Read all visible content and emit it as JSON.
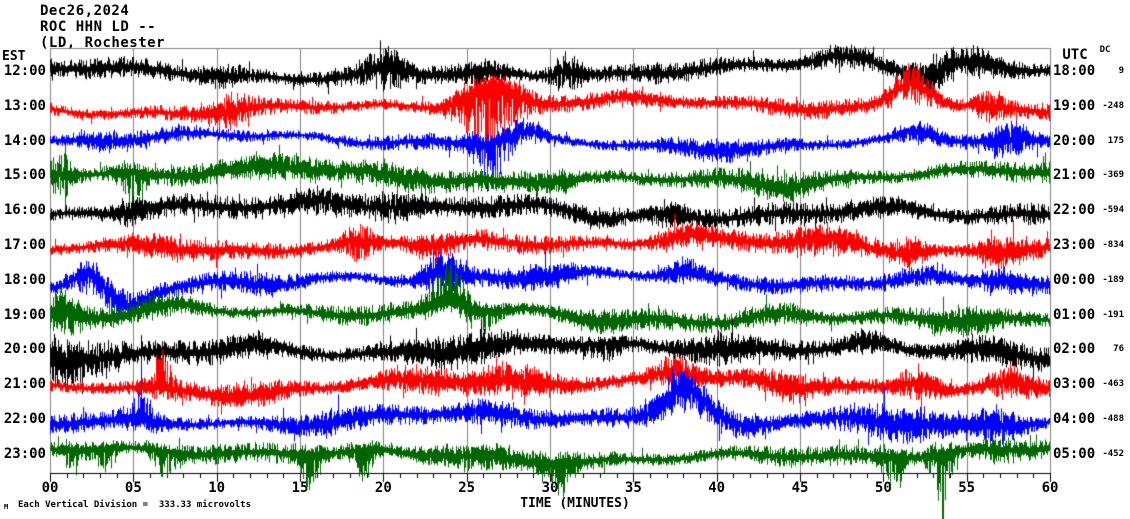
{
  "header": {
    "date": "Dec26,2024",
    "station": "ROC HHN LD --",
    "location": "(LD, Rochester"
  },
  "axes": {
    "left_header": "EST",
    "right_header": "UTC",
    "dc_header": "DC",
    "x_title": "TIME (MINUTES)",
    "footnote": "Each Vertical Division =  333.33 microvolts",
    "watermark": "M",
    "x_tick_labels": [
      "00",
      "05",
      "10",
      "15",
      "20",
      "25",
      "30",
      "35",
      "40",
      "45",
      "50",
      "55",
      "60"
    ]
  },
  "colors": {
    "black": "#000000",
    "red": "#ff0000",
    "blue": "#0000ff",
    "green": "#006600",
    "grid": "#808080",
    "axis": "#000000"
  },
  "chart_data": {
    "type": "line",
    "title": "ROC HHN LD -- helicorder, Dec26,2024",
    "xlabel": "TIME (MINUTES)",
    "x_range_minutes": [
      0,
      60
    ],
    "minor_tick_minutes": 1,
    "major_tick_minutes": 5,
    "microvolts_per_division": 333.33,
    "seed": 20241226,
    "rows": [
      {
        "est": "12:00",
        "utc": "18:00",
        "dc": "9",
        "color": "black",
        "amp": 11,
        "events": [
          {
            "m": 10.5,
            "w": 1.2,
            "a": 8
          },
          {
            "m": 20,
            "w": 0.9,
            "a": 16,
            "s": -6
          },
          {
            "m": 26,
            "w": 1,
            "a": 10
          },
          {
            "m": 31,
            "w": 0.7,
            "a": 18,
            "s": -6
          },
          {
            "m": 47.5,
            "w": 1.8,
            "a": 8,
            "s": -10
          },
          {
            "m": 52.5,
            "w": 1,
            "a": 6,
            "s": 6
          },
          {
            "m": 55,
            "w": 1.5,
            "a": 8,
            "s": -8
          }
        ]
      },
      {
        "est": "13:00",
        "utc": "19:00",
        "dc": "-248",
        "color": "red",
        "amp": 10,
        "events": [
          {
            "m": 11,
            "w": 0.8,
            "a": 12
          },
          {
            "m": 26.3,
            "w": 1.3,
            "a": 40,
            "d": 1,
            "s": -20
          },
          {
            "m": 35,
            "w": 1.5,
            "a": 6
          },
          {
            "m": 51.7,
            "w": 1.1,
            "a": 18,
            "s": -26
          },
          {
            "m": 56.5,
            "w": 0.8,
            "a": 14
          }
        ]
      },
      {
        "est": "14:00",
        "utc": "20:00",
        "dc": "175",
        "color": "blue",
        "amp": 9,
        "events": [
          {
            "m": 3,
            "w": 1,
            "a": 6
          },
          {
            "m": 26.5,
            "w": 0.8,
            "a": 30,
            "d": 1
          },
          {
            "m": 28.5,
            "w": 1,
            "a": 8,
            "s": -8
          },
          {
            "m": 40,
            "w": 2,
            "a": 5
          },
          {
            "m": 52,
            "w": 1,
            "a": 8,
            "s": -6
          },
          {
            "m": 57.5,
            "w": 0.8,
            "a": 14
          }
        ]
      },
      {
        "est": "15:00",
        "utc": "21:00",
        "dc": "-369",
        "color": "green",
        "amp": 12,
        "events": [
          {
            "m": 0.6,
            "w": 0.6,
            "a": 22
          },
          {
            "m": 5,
            "w": 0.6,
            "a": 18,
            "d": 1
          },
          {
            "m": 14,
            "w": 2,
            "a": 8,
            "s": -5
          },
          {
            "m": 20,
            "w": 2.5,
            "a": 8
          },
          {
            "m": 30,
            "w": 1,
            "a": 8
          },
          {
            "m": 44,
            "w": 1.5,
            "a": 6,
            "s": 4
          }
        ]
      },
      {
        "est": "16:00",
        "utc": "22:00",
        "dc": "-594",
        "color": "black",
        "amp": 12,
        "events": [
          {
            "m": 5,
            "w": 1,
            "a": 8
          },
          {
            "m": 17,
            "w": 2,
            "a": 10,
            "s": -8
          },
          {
            "m": 21,
            "w": 1,
            "a": 10
          },
          {
            "m": 33,
            "w": 1.5,
            "a": 6,
            "s": 6
          },
          {
            "m": 37,
            "w": 0.8,
            "a": 12
          },
          {
            "m": 50,
            "w": 2,
            "a": 6,
            "s": -5
          }
        ]
      },
      {
        "est": "17:00",
        "utc": "23:00",
        "dc": "-834",
        "color": "red",
        "amp": 11,
        "events": [
          {
            "m": 6,
            "w": 1.5,
            "a": 6,
            "s": -5
          },
          {
            "m": 18.5,
            "w": 0.8,
            "a": 16
          },
          {
            "m": 23,
            "w": 1,
            "a": 8,
            "s": 6
          },
          {
            "m": 38,
            "w": 1.5,
            "a": 8,
            "s": -6
          },
          {
            "m": 47,
            "w": 2,
            "a": 10,
            "s": -6
          },
          {
            "m": 51.5,
            "w": 0.8,
            "a": 12
          },
          {
            "m": 57,
            "w": 0.8,
            "a": 14
          }
        ]
      },
      {
        "est": "18:00",
        "utc": "00:00",
        "dc": "-189",
        "color": "blue",
        "amp": 10,
        "events": [
          {
            "m": 2.2,
            "w": 0.9,
            "a": 14,
            "s": -14
          },
          {
            "m": 4.6,
            "w": 1.1,
            "a": 10,
            "s": 20
          },
          {
            "m": 13,
            "w": 1.5,
            "a": 6,
            "s": 6
          },
          {
            "m": 23.5,
            "w": 0.9,
            "a": 18,
            "s": -8
          },
          {
            "m": 30,
            "w": 1.5,
            "a": 8
          },
          {
            "m": 38,
            "w": 1,
            "a": 10,
            "s": -6
          },
          {
            "m": 52,
            "w": 1.5,
            "a": 8,
            "s": -5
          },
          {
            "m": 57,
            "w": 1,
            "a": 10,
            "s": -6
          }
        ]
      },
      {
        "est": "19:00",
        "utc": "01:00",
        "dc": "-191",
        "color": "green",
        "amp": 11,
        "events": [
          {
            "m": 0.8,
            "w": 0.8,
            "a": 18,
            "s": -6
          },
          {
            "m": 7,
            "w": 1.5,
            "a": 6,
            "s": -6
          },
          {
            "m": 24,
            "w": 1,
            "a": 22,
            "d": -1,
            "s": -10
          },
          {
            "m": 26,
            "w": 0.8,
            "a": 12,
            "d": 1
          },
          {
            "m": 33,
            "w": 2,
            "a": 6,
            "s": 5
          },
          {
            "m": 44,
            "w": 1.5,
            "a": 8,
            "s": -5
          },
          {
            "m": 55,
            "w": 1.5,
            "a": 8
          }
        ]
      },
      {
        "est": "20:00",
        "utc": "02:00",
        "dc": "76",
        "color": "black",
        "amp": 13,
        "events": [
          {
            "m": 0.8,
            "w": 1,
            "a": 26,
            "s": 4
          },
          {
            "m": 3.5,
            "w": 0.8,
            "a": 12
          },
          {
            "m": 12,
            "w": 1.5,
            "a": 6,
            "s": -6
          },
          {
            "m": 25,
            "w": 3,
            "a": 8
          },
          {
            "m": 33,
            "w": 1,
            "a": 10,
            "d": 1
          },
          {
            "m": 40,
            "w": 1.5,
            "a": 8
          },
          {
            "m": 49,
            "w": 1,
            "a": 8,
            "s": -5
          },
          {
            "m": 56,
            "w": 1.5,
            "a": 6,
            "s": -4
          }
        ]
      },
      {
        "est": "21:00",
        "utc": "03:00",
        "dc": "-463",
        "color": "red",
        "amp": 11,
        "events": [
          {
            "m": 6.7,
            "w": 0.5,
            "a": 22,
            "d": -1
          },
          {
            "m": 12,
            "w": 1.5,
            "a": 6,
            "s": 5
          },
          {
            "m": 22,
            "w": 2,
            "a": 10
          },
          {
            "m": 28,
            "w": 1.5,
            "a": 10
          },
          {
            "m": 37.5,
            "w": 1.2,
            "a": 14,
            "s": -10
          },
          {
            "m": 44,
            "w": 1,
            "a": 8,
            "s": 5
          },
          {
            "m": 52,
            "w": 1,
            "a": 16,
            "s": -8
          },
          {
            "m": 57.5,
            "w": 1,
            "a": 12,
            "s": -6
          }
        ]
      },
      {
        "est": "22:00",
        "utc": "04:00",
        "dc": "-488",
        "color": "blue",
        "amp": 11,
        "events": [
          {
            "m": 5.5,
            "w": 0.6,
            "a": 18,
            "d": -1
          },
          {
            "m": 16,
            "w": 2,
            "a": 6,
            "s": 4
          },
          {
            "m": 27,
            "w": 2,
            "a": 10
          },
          {
            "m": 38,
            "w": 1.2,
            "a": 18,
            "s": -30
          },
          {
            "m": 41.5,
            "w": 1.5,
            "a": 8,
            "s": 10
          },
          {
            "m": 50,
            "w": 3,
            "a": 12,
            "s": -4
          },
          {
            "m": 57,
            "w": 1,
            "a": 12
          }
        ]
      },
      {
        "est": "23:00",
        "utc": "05:00",
        "dc": "-452",
        "color": "green",
        "amp": 11,
        "events": [
          {
            "m": 1.5,
            "w": 0.5,
            "a": 16,
            "d": 1
          },
          {
            "m": 3.3,
            "w": 0.5,
            "a": 16,
            "d": 1
          },
          {
            "m": 7,
            "w": 0.7,
            "a": 14,
            "d": 1
          },
          {
            "m": 15.6,
            "w": 0.5,
            "a": 20,
            "d": 1
          },
          {
            "m": 18.8,
            "w": 0.5,
            "a": 18,
            "d": 1
          },
          {
            "m": 25,
            "w": 2,
            "a": 8
          },
          {
            "m": 30.5,
            "w": 0.6,
            "a": 18,
            "d": 1
          },
          {
            "m": 50.6,
            "w": 0.5,
            "a": 24,
            "d": 1
          },
          {
            "m": 53.5,
            "w": 0.5,
            "a": 42,
            "d": 1
          },
          {
            "m": 57,
            "w": 1,
            "a": 10
          }
        ]
      }
    ]
  }
}
